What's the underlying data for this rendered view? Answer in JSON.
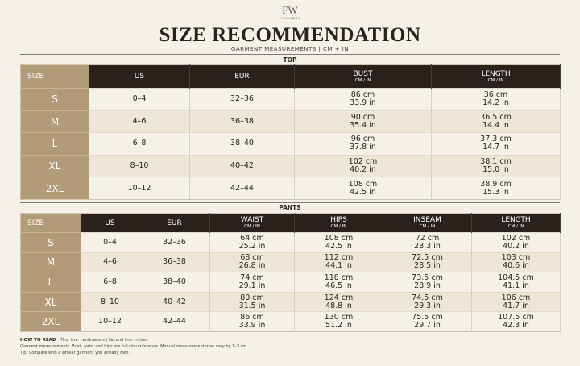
{
  "logo": {
    "monogram": "FW",
    "brand": "CLARAWAY"
  },
  "header": {
    "title": "SIZE RECOMMENDATION",
    "subtitle": "GARMENT MEASUREMENTS | CM + IN"
  },
  "top": {
    "label": "TOP",
    "columns": [
      {
        "label": "SIZE"
      },
      {
        "label": "US"
      },
      {
        "label": "EUR"
      },
      {
        "label": "BUST",
        "unit": "CM / IN"
      },
      {
        "label": "LENGTH",
        "unit": "CM / IN"
      }
    ],
    "rows": [
      [
        "S",
        "0–4",
        "32–36",
        [
          "86 cm",
          "33.9 in"
        ],
        [
          "36 cm",
          "14.2 in"
        ]
      ],
      [
        "M",
        "4–6",
        "36–38",
        [
          "90 cm",
          "35.4 in"
        ],
        [
          "36.5 cm",
          "14.4 in"
        ]
      ],
      [
        "L",
        "6–8",
        "38–40",
        [
          "96 cm",
          "37.8 in"
        ],
        [
          "37.3 cm",
          "14.7 in"
        ]
      ],
      [
        "XL",
        "8–10",
        "40–42",
        [
          "102 cm",
          "40.2 in"
        ],
        [
          "38.1 cm",
          "15.0 in"
        ]
      ],
      [
        "2XL",
        "10–12",
        "42–44",
        [
          "108 cm",
          "42.5 in"
        ],
        [
          "38.9 cm",
          "15.3 in"
        ]
      ]
    ]
  },
  "pants": {
    "label": "PANTS",
    "columns": [
      {
        "label": "SIZE"
      },
      {
        "label": "US"
      },
      {
        "label": "EUR"
      },
      {
        "label": "WAIST",
        "unit": "CM / IN"
      },
      {
        "label": "HIPS",
        "unit": "CM / IN"
      },
      {
        "label": "INSEAM",
        "unit": "CM / IN"
      },
      {
        "label": "LENGTH",
        "unit": "CM / IN"
      }
    ],
    "rows": [
      [
        "S",
        "0–4",
        "32–36",
        [
          "64 cm",
          "25.2 in"
        ],
        [
          "108 cm",
          "42.5 in"
        ],
        [
          "72 cm",
          "28.3 in"
        ],
        [
          "102 cm",
          "40.2 in"
        ]
      ],
      [
        "M",
        "4–6",
        "36–38",
        [
          "68 cm",
          "26.8 in"
        ],
        [
          "112 cm",
          "44.1 in"
        ],
        [
          "72.5 cm",
          "28.5 in"
        ],
        [
          "103 cm",
          "40.6 in"
        ]
      ],
      [
        "L",
        "6–8",
        "38–40",
        [
          "74 cm",
          "29.1 in"
        ],
        [
          "118 cm",
          "46.5 in"
        ],
        [
          "73.5 cm",
          "28.9 in"
        ],
        [
          "104.5 cm",
          "41.1 in"
        ]
      ],
      [
        "XL",
        "8–10",
        "40–42",
        [
          "80 cm",
          "31.5 in"
        ],
        [
          "124 cm",
          "48.8 in"
        ],
        [
          "74.5 cm",
          "29.3 in"
        ],
        [
          "106 cm",
          "41.7 in"
        ]
      ],
      [
        "2XL",
        "10–12",
        "42–44",
        [
          "86 cm",
          "33.9 in"
        ],
        [
          "130 cm",
          "51.2 in"
        ],
        [
          "75.5 cm",
          "29.7 in"
        ],
        [
          "107.5 cm",
          "42.3 in"
        ]
      ]
    ]
  },
  "footer": {
    "heading": "HOW TO READ",
    "legend": "First line: centimeters  |  Second line: inches",
    "note": "Garment measurements. Bust, waist and hips are full circumference. Manual measurement may vary by 1–3 cm.",
    "tip": "Tip: Compare with a similar garment you already own."
  }
}
